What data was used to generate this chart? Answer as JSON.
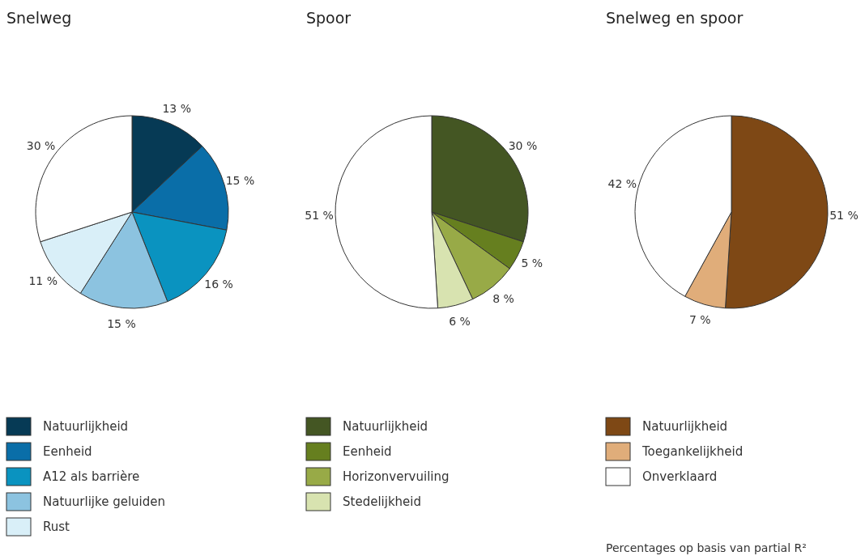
{
  "chart_data": [
    {
      "type": "pie",
      "title": "Snelweg",
      "categories": [
        "Natuurlijkheid",
        "Eenheid",
        "A12 als barrière",
        "Natuurlijke geluiden",
        "Rust",
        null
      ],
      "values": [
        13,
        15,
        16,
        15,
        11,
        30
      ],
      "colors": [
        "#063a55",
        "#0a6ea8",
        "#0a93c0",
        "#8cc3e0",
        "#d9eff8",
        "#ffffff"
      ],
      "value_labels": [
        "13 %",
        "15 %",
        "16 %",
        "15 %",
        "11 %",
        "30 %"
      ],
      "legend": "bottom"
    },
    {
      "type": "pie",
      "title": "Spoor",
      "categories": [
        "Natuurlijkheid",
        "Eenheid",
        "Horizonvervuiling",
        "Stedelijkheid",
        null
      ],
      "values": [
        30,
        5,
        8,
        6,
        51
      ],
      "colors": [
        "#445623",
        "#667f1f",
        "#98aa47",
        "#d8e3b0",
        "#ffffff"
      ],
      "value_labels": [
        "30 %",
        "5 %",
        "8 %",
        "6 %",
        "51 %"
      ],
      "legend": "bottom"
    },
    {
      "type": "pie",
      "title": "Snelweg en spoor",
      "categories": [
        "Natuurlijkheid",
        "Toegankelijkheid",
        "Onverklaard"
      ],
      "values": [
        51,
        7,
        42
      ],
      "colors": [
        "#7e4815",
        "#e0ad7a",
        "#ffffff"
      ],
      "value_labels": [
        "51 %",
        "7 %",
        "42 %"
      ],
      "legend": "bottom",
      "annotations": [
        "Percentages op basis van partial R²"
      ]
    }
  ]
}
